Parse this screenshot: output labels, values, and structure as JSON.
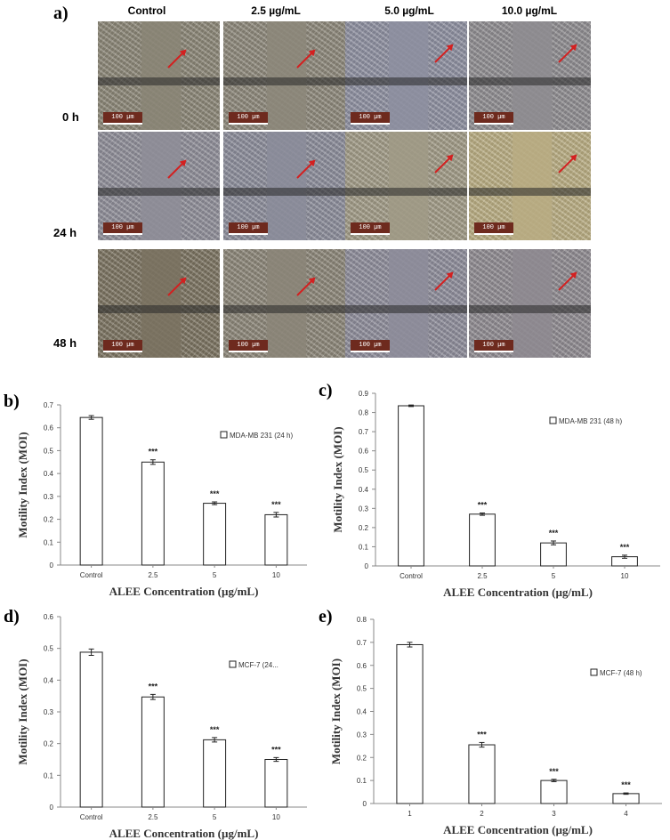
{
  "figure": {
    "panel_a": {
      "letter": "a)",
      "columns": [
        "Control",
        "2.5 µg/mL",
        "5.0 µg/mL",
        "10.0 µg/mL"
      ],
      "rows": [
        "0 h",
        "24 h",
        "48 h"
      ],
      "scale_bar_text": "100 µm",
      "tile_colors": [
        [
          "#8a8576",
          "#8c877a",
          "#8d8fa0",
          "#8e8c90"
        ],
        [
          "#8e8d98",
          "#8b8c9a",
          "#a09a86",
          "#b8ac82"
        ],
        [
          "#7a7260",
          "#8b8578",
          "#8d8c9a",
          "#8e8a90"
        ]
      ]
    },
    "panel_b": {
      "letter": "b)"
    },
    "panel_c": {
      "letter": "c)"
    },
    "panel_d": {
      "letter": "d)"
    },
    "panel_e": {
      "letter": "e)"
    }
  },
  "chart_data": [
    {
      "type": "bar",
      "panel": "b",
      "categories": [
        "Control",
        "2.5",
        "5",
        "10"
      ],
      "values": [
        0.645,
        0.45,
        0.27,
        0.22
      ],
      "errors": [
        0.008,
        0.01,
        0.006,
        0.01
      ],
      "significance": [
        "",
        "***",
        "***",
        "***"
      ],
      "legend": "MDA-MB 231 (24 h)",
      "ylim": [
        0,
        0.7
      ],
      "yticks": [
        "0",
        "0.1",
        "0.2",
        "0.3",
        "0.4",
        "0.5",
        "0.6",
        "0.7"
      ],
      "xlabel": "ALEE Concentration (µg/mL)",
      "ylabel": "Motility Index (MOI)"
    },
    {
      "type": "bar",
      "panel": "c",
      "categories": [
        "Control",
        "2.5",
        "5",
        "10"
      ],
      "values": [
        0.835,
        0.27,
        0.12,
        0.048
      ],
      "errors": [
        0.004,
        0.006,
        0.01,
        0.008
      ],
      "significance": [
        "",
        "***",
        "***",
        "***"
      ],
      "legend": "MDA-MB 231 (48 h)",
      "ylim": [
        0,
        0.9
      ],
      "yticks": [
        "0",
        "0.1",
        "0.2",
        "0.3",
        "0.4",
        "0.5",
        "0.6",
        "0.7",
        "0.8",
        "0.9"
      ],
      "xlabel": "ALEE Concentration (µg/mL)",
      "ylabel": "Motility Index (MOI)"
    },
    {
      "type": "bar",
      "panel": "d",
      "categories": [
        "Control",
        "2.5",
        "5",
        "10"
      ],
      "values": [
        0.488,
        0.347,
        0.212,
        0.15
      ],
      "errors": [
        0.01,
        0.008,
        0.007,
        0.006
      ],
      "significance": [
        "",
        "***",
        "***",
        "***"
      ],
      "legend": "MCF-7 (24...",
      "ylim": [
        0,
        0.6
      ],
      "yticks": [
        "0",
        "0.1",
        "0.2",
        "0.3",
        "0.4",
        "0.5",
        "0.6"
      ],
      "xlabel": "ALEE Concentration (µg/mL)",
      "ylabel": "Motility Index (MOI)"
    },
    {
      "type": "bar",
      "panel": "e",
      "categories": [
        "1",
        "2",
        "3",
        "4"
      ],
      "values": [
        0.69,
        0.255,
        0.1,
        0.043
      ],
      "errors": [
        0.01,
        0.01,
        0.005,
        0.003
      ],
      "significance": [
        "",
        "***",
        "***",
        "***"
      ],
      "legend": "MCF-7 (48 h)",
      "ylim": [
        0,
        0.8
      ],
      "yticks": [
        "0",
        "0.1",
        "0.2",
        "0.3",
        "0.4",
        "0.5",
        "0.6",
        "0.7",
        "0.8"
      ],
      "xlabel": "ALEE Concentration (µg/mL)",
      "ylabel": "Motility Index (MOI)"
    }
  ]
}
